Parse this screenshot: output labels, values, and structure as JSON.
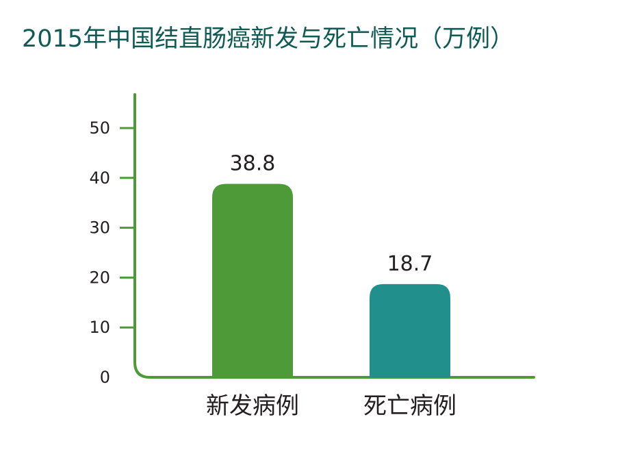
{
  "chart_data": {
    "type": "bar",
    "title": "2015年中国结直肠癌新发与死亡情况（万例）",
    "xlabel": "",
    "ylabel": "",
    "ylim": [
      0,
      50
    ],
    "yticks": [
      0,
      10,
      20,
      30,
      40,
      50
    ],
    "categories": [
      "新发病例",
      "死亡病例"
    ],
    "values": [
      38.8,
      18.7
    ],
    "value_labels": [
      "38.8",
      "18.7"
    ],
    "bar_colors": [
      "#4e9a38",
      "#21908c"
    ],
    "axis_color": "#4e9a38",
    "title_color": "#0f5a55",
    "grid": false,
    "legend": "none"
  }
}
